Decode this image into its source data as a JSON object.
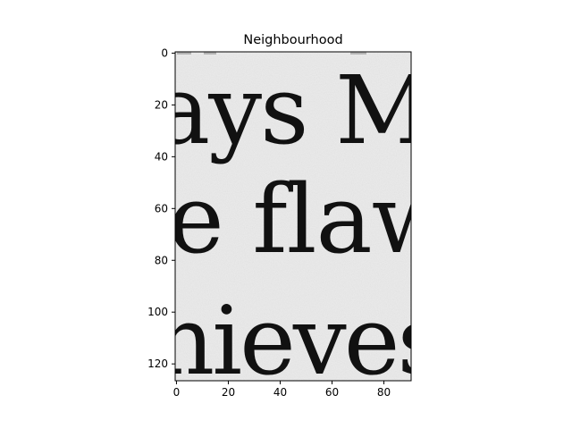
{
  "figure": {
    "title": "Neighbourhood",
    "background_color": "#ffffff",
    "axes_color": "#000000"
  },
  "image": {
    "description_words": [
      "ays M",
      "e flaw",
      "nieves"
    ],
    "x_range": [
      -0.5,
      90.5
    ],
    "y_range": [
      -0.5,
      126.5
    ],
    "y_inverted": true,
    "paper_color": "#ebebeb",
    "ink_color": "#111111"
  },
  "axes": {
    "x_ticks": [
      0,
      20,
      40,
      60,
      80
    ],
    "x_tick_labels": [
      "0",
      "20",
      "40",
      "60",
      "80"
    ],
    "y_ticks": [
      0,
      20,
      40,
      60,
      80,
      100,
      120
    ],
    "y_tick_labels": [
      "0",
      "20",
      "40",
      "60",
      "80",
      "100",
      "120"
    ]
  }
}
